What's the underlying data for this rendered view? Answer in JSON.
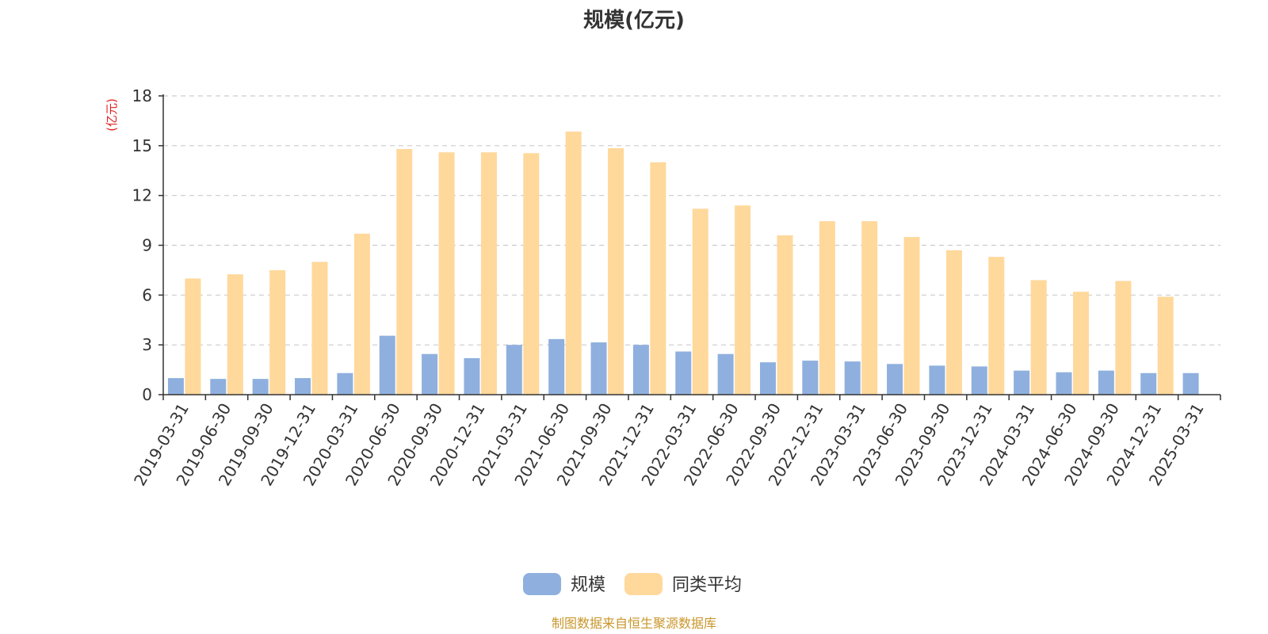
{
  "chart_data": {
    "type": "bar",
    "title": "规模(亿元)",
    "ylabel": "(亿元)",
    "ylim": [
      0,
      18
    ],
    "yticks": [
      0,
      3,
      6,
      9,
      12,
      15,
      18
    ],
    "grid": true,
    "legend_position": "bottom",
    "categories": [
      "2019-03-31",
      "2019-06-30",
      "2019-09-30",
      "2019-12-31",
      "2020-03-31",
      "2020-06-30",
      "2020-09-30",
      "2020-12-31",
      "2021-03-31",
      "2021-06-30",
      "2021-09-30",
      "2021-12-31",
      "2022-03-31",
      "2022-06-30",
      "2022-09-30",
      "2022-12-31",
      "2023-03-31",
      "2023-06-30",
      "2023-09-30",
      "2023-12-31",
      "2024-03-31",
      "2024-06-30",
      "2024-09-30",
      "2024-12-31",
      "2025-03-31"
    ],
    "series": [
      {
        "name": "规模",
        "color": "#8fb0de",
        "values": [
          1.0,
          0.95,
          0.95,
          1.0,
          1.3,
          3.55,
          2.45,
          2.2,
          3.0,
          3.35,
          3.15,
          3.0,
          2.6,
          2.45,
          1.95,
          2.05,
          2.0,
          1.85,
          1.75,
          1.7,
          1.45,
          1.35,
          1.45,
          1.3,
          1.3
        ]
      },
      {
        "name": "同类平均",
        "color": "#ffd89b",
        "values": [
          7.0,
          7.25,
          7.5,
          8.0,
          9.7,
          14.8,
          14.6,
          14.6,
          14.55,
          15.85,
          14.85,
          14.0,
          11.2,
          11.4,
          9.6,
          10.45,
          10.45,
          9.5,
          8.7,
          8.3,
          6.9,
          6.2,
          6.85,
          5.9,
          null
        ]
      }
    ]
  },
  "source_text": "制图数据来自恒生聚源数据库"
}
